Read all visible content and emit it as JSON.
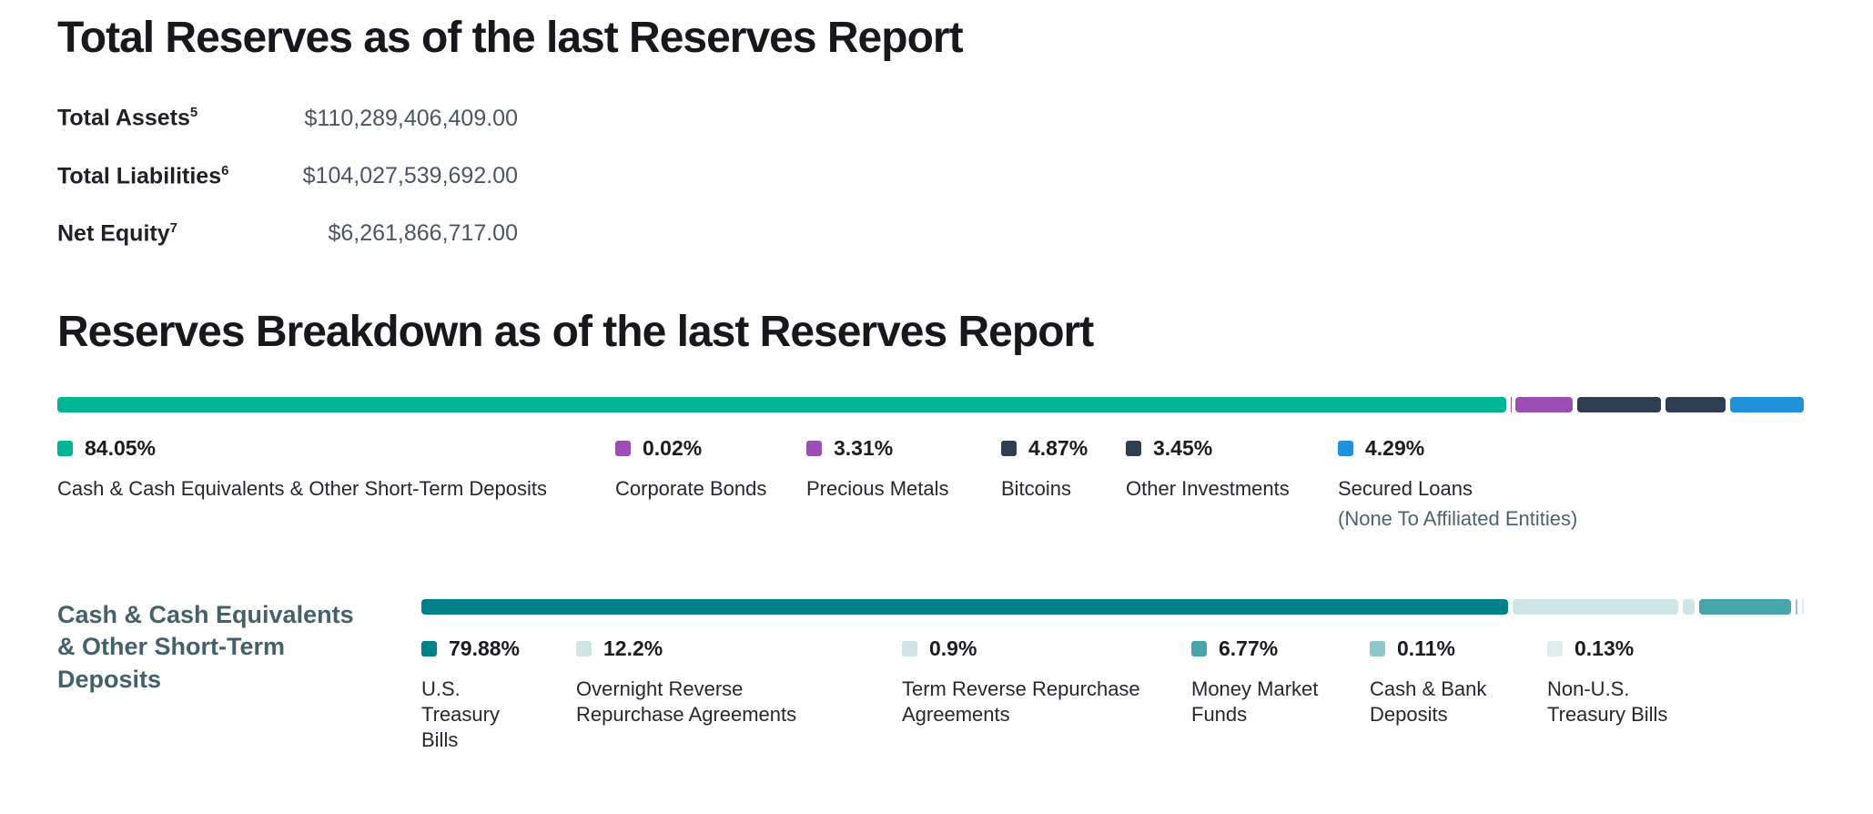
{
  "titles": {
    "total_reserves": "Total Reserves as of the last Reserves Report",
    "reserves_breakdown": "Reserves Breakdown as of the last Reserves Report"
  },
  "totals": {
    "rows": [
      {
        "label": "Total Assets",
        "sup": "5",
        "value": "$110,289,406,409.00"
      },
      {
        "label": "Total Liabilities",
        "sup": "6",
        "value": "$104,027,539,692.00"
      },
      {
        "label": "Net Equity",
        "sup": "7",
        "value": "$6,261,866,717.00"
      }
    ]
  },
  "section2": {
    "label": "Cash & Cash Equivalents & Other Short-Term Deposits"
  },
  "chart_data": [
    {
      "type": "bar",
      "variant": "stacked-horizontal-100pct",
      "title": "Reserves Breakdown as of the last Reserves Report",
      "unit": "%",
      "segments": [
        {
          "label": "Cash & Cash Equivalents & Other Short-Term Deposits",
          "pct": 84.05,
          "pct_label": "84.05%",
          "color": "#00B596"
        },
        {
          "label": "Corporate Bonds",
          "pct": 0.02,
          "pct_label": "0.02%",
          "color": "#9B4FB3"
        },
        {
          "label": "Precious Metals",
          "pct": 3.31,
          "pct_label": "3.31%",
          "color": "#9B4FB3"
        },
        {
          "label": "Bitcoins",
          "pct": 4.87,
          "pct_label": "4.87%",
          "color": "#2E3E50"
        },
        {
          "label": "Other Investments",
          "pct": 3.45,
          "pct_label": "3.45%",
          "color": "#2E3E50"
        },
        {
          "label": "Secured Loans",
          "sublabel": "(None To Affiliated Entities)",
          "pct": 4.29,
          "pct_label": "4.29%",
          "color": "#2191D9"
        }
      ]
    },
    {
      "type": "bar",
      "variant": "stacked-horizontal-100pct",
      "title": "Cash & Cash Equivalents & Other Short-Term Deposits",
      "unit": "%",
      "segments": [
        {
          "label": "U.S. Treasury Bills",
          "pct": 79.88,
          "pct_label": "79.88%",
          "color": "#00818A"
        },
        {
          "label": "Overnight Reverse Repurchase Agreements",
          "pct": 12.2,
          "pct_label": "12.2%",
          "color": "#CFE4E5"
        },
        {
          "label": "Term Reverse Repurchase Agreements",
          "pct": 0.9,
          "pct_label": "0.9%",
          "color": "#CFE4E5"
        },
        {
          "label": "Money Market Funds",
          "pct": 6.77,
          "pct_label": "6.77%",
          "color": "#47A4A8"
        },
        {
          "label": "Cash & Bank Deposits",
          "pct": 0.11,
          "pct_label": "0.11%",
          "color": "#8FC6C9"
        },
        {
          "label": "Non-U.S. Treasury Bills",
          "pct": 0.13,
          "pct_label": "0.13%",
          "color": "#DDEEED"
        }
      ]
    }
  ]
}
